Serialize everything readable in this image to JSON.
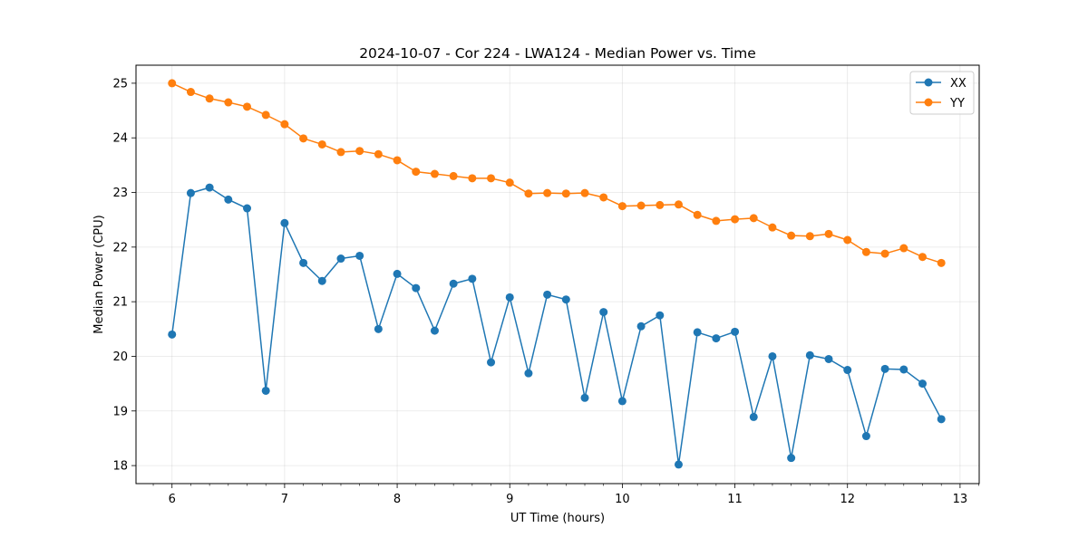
{
  "chart_data": {
    "type": "line",
    "title": "2024-10-07 - Cor 224 - LWA124 - Median Power vs. Time",
    "xlabel": "UT Time (hours)",
    "ylabel": "Median Power (CPU)",
    "xlim": [
      5.68,
      13.17
    ],
    "ylim": [
      17.67,
      25.33
    ],
    "xticks": [
      6,
      7,
      8,
      9,
      10,
      11,
      12,
      13
    ],
    "yticks": [
      18,
      19,
      20,
      21,
      22,
      23,
      24,
      25
    ],
    "grid": true,
    "legend_position": "top-right",
    "x": [
      6.0,
      6.1667,
      6.3333,
      6.5,
      6.6667,
      6.8333,
      7.0,
      7.1667,
      7.3333,
      7.5,
      7.6667,
      7.8333,
      8.0,
      8.1667,
      8.3333,
      8.5,
      8.6667,
      8.8333,
      9.0,
      9.1667,
      9.3333,
      9.5,
      9.6667,
      9.8333,
      10.0,
      10.1667,
      10.3333,
      10.5,
      10.6667,
      10.8333,
      11.0,
      11.1667,
      11.3333,
      11.5,
      11.6667,
      11.8333,
      12.0,
      12.1667,
      12.3333,
      12.5,
      12.6667,
      12.8333
    ],
    "series": [
      {
        "name": "XX",
        "color": "#1f77b4",
        "values": [
          20.4,
          22.99,
          23.09,
          22.87,
          22.71,
          19.37,
          22.44,
          21.71,
          21.38,
          21.79,
          21.84,
          20.5,
          21.51,
          21.25,
          20.47,
          21.33,
          21.42,
          19.89,
          21.08,
          19.69,
          21.13,
          21.04,
          19.24,
          20.81,
          19.18,
          20.55,
          20.75,
          18.02,
          20.44,
          20.33,
          20.45,
          18.89,
          20.0,
          18.14,
          20.02,
          19.95,
          19.75,
          18.54,
          19.77,
          19.76,
          19.5,
          18.85
        ]
      },
      {
        "name": "YY",
        "color": "#ff7f0e",
        "values": [
          25.0,
          24.84,
          24.72,
          24.65,
          24.57,
          24.42,
          24.25,
          23.99,
          23.88,
          23.74,
          23.76,
          23.7,
          23.59,
          23.38,
          23.34,
          23.3,
          23.26,
          23.26,
          23.18,
          22.98,
          22.99,
          22.98,
          22.99,
          22.91,
          22.75,
          22.76,
          22.77,
          22.78,
          22.59,
          22.48,
          22.51,
          22.53,
          22.36,
          22.21,
          22.2,
          22.24,
          22.13,
          21.91,
          21.88,
          21.98,
          21.82,
          21.71
        ]
      }
    ]
  }
}
